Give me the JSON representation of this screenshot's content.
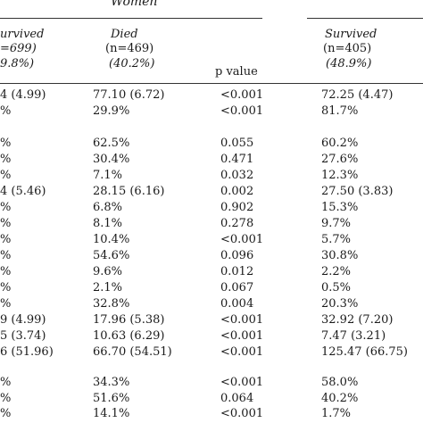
{
  "header": {
    "group_label": "Women",
    "columns": [
      {
        "title": "urvived",
        "n": "=699)",
        "pct": "9.8%)"
      },
      {
        "title": "Died",
        "n": "(n=469)",
        "pct": "(40.2%)"
      },
      {
        "title": "p value"
      },
      {
        "title": "Survived",
        "n": "(n=405)",
        "pct": "(48.9%)"
      }
    ]
  },
  "rows": [
    [
      "4 (4.99)",
      "77.10 (6.72)",
      "<0.001",
      "72.25 (4.47)"
    ],
    [
      "%",
      "29.9%",
      "<0.001",
      "81.7%"
    ],
    [
      "%",
      "62.5%",
      "0.055",
      "60.2%"
    ],
    [
      "%",
      "30.4%",
      "0.471",
      "27.6%"
    ],
    [
      "%",
      "7.1%",
      "0.032",
      "12.3%"
    ],
    [
      "4 (5.46)",
      "28.15 (6.16)",
      "0.002",
      "27.50 (3.83)"
    ],
    [
      "%",
      "6.8%",
      "0.902",
      "15.3%"
    ],
    [
      "%",
      "8.1%",
      "0.278",
      "9.7%"
    ],
    [
      "%",
      "10.4%",
      "<0.001",
      "5.7%"
    ],
    [
      "%",
      "54.6%",
      "0.096",
      "30.8%"
    ],
    [
      "%",
      "9.6%",
      "0.012",
      "2.2%"
    ],
    [
      "%",
      "2.1%",
      "0.067",
      "0.5%"
    ],
    [
      "%",
      "32.8%",
      "0.004",
      "20.3%"
    ],
    [
      "9 (4.99)",
      "17.96 (5.38)",
      "<0.001",
      "32.92 (7.20)"
    ],
    [
      "5 (3.74)",
      "10.63 (6.29)",
      "<0.001",
      "7.47 (3.21)"
    ],
    [
      "6 (51.96)",
      "66.70 (54.51)",
      "<0.001",
      "125.47 (66.75)"
    ],
    [
      "%",
      "34.3%",
      "<0.001",
      "58.0%"
    ],
    [
      "%",
      "51.6%",
      "0.064",
      "40.2%"
    ],
    [
      "%",
      "14.1%",
      "<0.001",
      "1.7%"
    ]
  ]
}
